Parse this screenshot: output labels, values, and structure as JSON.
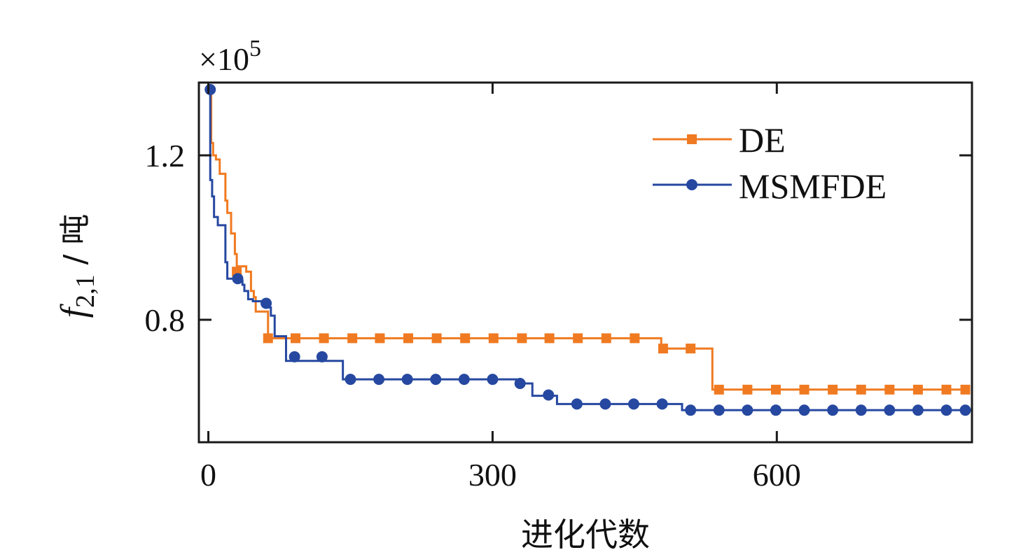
{
  "chart_data": {
    "type": "line",
    "title": "",
    "xlabel": "进化代数",
    "ylabel_main": "f",
    "ylabel_sub": "2,1",
    "ylabel_unit": " / 吨",
    "y_multiplier_base": "×10",
    "y_multiplier_exp": "5",
    "xlim": [
      -10,
      806
    ],
    "ylim": [
      0.502,
      1.377
    ],
    "xticks": [
      0,
      300,
      600
    ],
    "xtick_labels": [
      "0",
      "300",
      "600"
    ],
    "yticks": [
      0.8,
      1.2
    ],
    "ytick_labels": [
      "0.8",
      "1.2"
    ],
    "grid": false,
    "legend_position": "top-right",
    "series": [
      {
        "name": "DE",
        "color": "#f07a21",
        "marker": "square",
        "steps": [
          [
            0,
            1.36
          ],
          [
            3,
            1.23
          ],
          [
            5,
            1.2
          ],
          [
            8,
            1.19
          ],
          [
            12,
            1.155
          ],
          [
            18,
            1.09
          ],
          [
            20,
            1.06
          ],
          [
            24,
            1.01
          ],
          [
            28,
            0.96
          ],
          [
            30,
            0.93
          ],
          [
            40,
            0.917
          ],
          [
            45,
            0.87
          ],
          [
            48,
            0.855
          ],
          [
            50,
            0.82
          ],
          [
            55,
            0.82
          ],
          [
            63,
            0.755
          ],
          [
            85,
            0.755
          ],
          [
            470,
            0.755
          ],
          [
            478,
            0.73
          ],
          [
            508,
            0.73
          ],
          [
            532,
            0.63
          ],
          [
            800,
            0.63
          ]
        ],
        "markers_x": [
          30,
          63,
          92,
          122,
          152,
          181,
          211,
          241,
          271,
          301,
          331,
          360,
          390,
          420,
          450,
          480,
          509,
          539,
          569,
          599,
          629,
          659,
          689,
          719,
          749,
          779,
          799
        ],
        "markers_y": [
          0.917,
          0.755,
          0.755,
          0.755,
          0.755,
          0.755,
          0.755,
          0.755,
          0.755,
          0.755,
          0.755,
          0.755,
          0.755,
          0.755,
          0.755,
          0.73,
          0.73,
          0.63,
          0.63,
          0.63,
          0.63,
          0.63,
          0.63,
          0.63,
          0.63,
          0.63,
          0.63
        ]
      },
      {
        "name": "MSMFDE",
        "color": "#2648a0",
        "marker": "circle",
        "steps": [
          [
            0,
            1.36
          ],
          [
            2,
            1.14
          ],
          [
            4,
            1.1
          ],
          [
            6,
            1.05
          ],
          [
            10,
            1.03
          ],
          [
            17,
            1.03
          ],
          [
            18,
            0.94
          ],
          [
            20,
            0.9
          ],
          [
            27,
            0.9
          ],
          [
            28,
            0.895
          ],
          [
            32,
            0.895
          ],
          [
            36,
            0.885
          ],
          [
            38,
            0.87
          ],
          [
            40,
            0.87
          ],
          [
            42,
            0.85
          ],
          [
            47,
            0.845
          ],
          [
            58,
            0.845
          ],
          [
            62,
            0.83
          ],
          [
            66,
            0.81
          ],
          [
            70,
            0.76
          ],
          [
            80,
            0.76
          ],
          [
            82,
            0.7
          ],
          [
            105,
            0.7
          ],
          [
            140,
            0.7
          ],
          [
            142,
            0.655
          ],
          [
            150,
            0.655
          ],
          [
            320,
            0.655
          ],
          [
            325,
            0.645
          ],
          [
            335,
            0.645
          ],
          [
            342,
            0.615
          ],
          [
            365,
            0.615
          ],
          [
            368,
            0.595
          ],
          [
            400,
            0.595
          ],
          [
            498,
            0.595
          ],
          [
            500,
            0.58
          ],
          [
            505,
            0.58
          ],
          [
            800,
            0.58
          ]
        ],
        "markers_x": [
          2,
          31,
          61,
          91,
          120,
          150,
          180,
          210,
          240,
          270,
          300,
          329,
          359,
          389,
          419,
          449,
          479,
          509,
          539,
          569,
          599,
          629,
          659,
          689,
          719,
          749,
          779,
          799
        ],
        "markers_y": [
          1.36,
          0.9,
          0.84,
          0.71,
          0.71,
          0.655,
          0.655,
          0.655,
          0.655,
          0.655,
          0.655,
          0.645,
          0.617,
          0.595,
          0.595,
          0.595,
          0.595,
          0.58,
          0.58,
          0.58,
          0.58,
          0.58,
          0.58,
          0.58,
          0.58,
          0.58,
          0.58,
          0.58
        ]
      }
    ]
  }
}
